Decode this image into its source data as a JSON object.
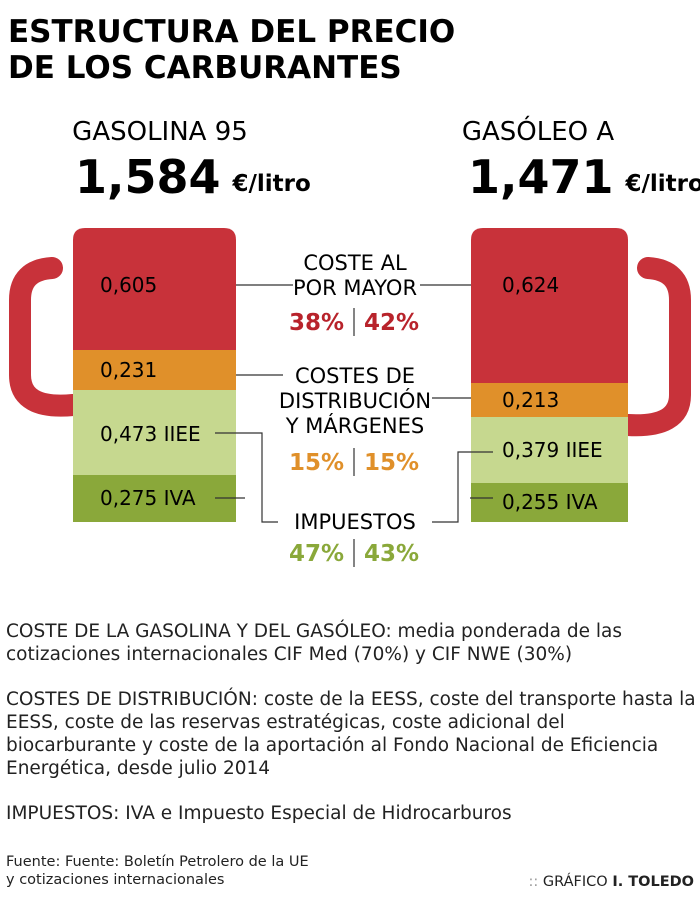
{
  "header": {
    "title": [
      "ESTRUCTURA DEL PRECIO",
      "DE LOS CARBURANTES"
    ]
  },
  "pumps": [
    {
      "name": "GASOLINA 95",
      "price": "1,584",
      "unit": "€/litro",
      "segments": [
        "0,605",
        "0,231",
        "0,473 IIEE",
        "0,275 IVA"
      ]
    },
    {
      "name": "GASÓLEO A",
      "price": "1,471",
      "unit": "€/litro",
      "segments": [
        "0,624",
        "0,213",
        "0,379 IIEE",
        "0,255 IVA"
      ]
    }
  ],
  "components": [
    {
      "lines": [
        "COSTE AL",
        "POR MAYOR"
      ],
      "left": "38%",
      "right": "42%"
    },
    {
      "lines": [
        "COSTES DE",
        "DISTRIBUCIÓN",
        "Y MÁRGENES"
      ],
      "left": "15%",
      "right": "15%"
    },
    {
      "lines": [
        "IMPUESTOS"
      ],
      "left": "47%",
      "right": "43%"
    }
  ],
  "notes": [
    "COSTE DE LA GASOLINA Y DEL GASÓLEO: media ponderada de las cotizaciones internacionales CIF Med (70%) y CIF NWE (30%)",
    "COSTES DE DISTRIBUCIÓN: coste de la EESS, coste del transporte hasta la EESS, coste de las reservas estratégicas, coste adicional del biocarburante y coste de la aportación al Fondo Nacional de Eficiencia Energética, desde julio 2014",
    "IMPUESTOS: IVA e Impuesto Especial de Hidrocarburos"
  ],
  "footer": {
    "source": [
      "Fuente: Fuente: Boletín Petrolero de la UE",
      "y cotizaciones internacionales"
    ],
    "credit_label": "GRÁFICO",
    "credit_name": "I. TOLEDO"
  }
}
